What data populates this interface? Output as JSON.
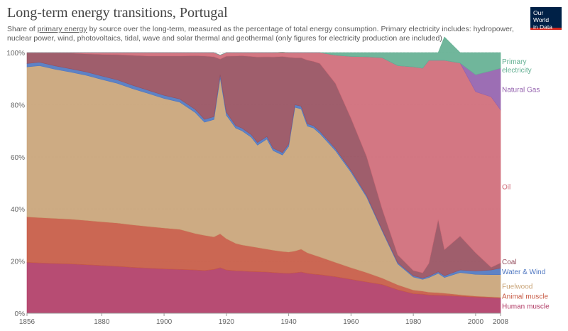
{
  "header": {
    "title": "Long-term energy transitions, Portugal",
    "subtitle_pre": "Share of ",
    "subtitle_link": "primary energy",
    "subtitle_post": " by source over the long-term, measured as the percentage of total energy consumption. Primary electricity includes: hydropower, nuclear power, wind, photovoltaics, tidal, wave and solar thermal and geothermal (only figures for electricity production are included).",
    "logo_line1": "Our World",
    "logo_line2": "in Data"
  },
  "chart_data": {
    "type": "area",
    "stacked": true,
    "title": "Long-term energy transitions, Portugal",
    "x_ticks": [
      1856,
      1880,
      1900,
      1920,
      1940,
      1960,
      1980,
      2000,
      2008
    ],
    "y_ticks": [
      0,
      20,
      40,
      60,
      80,
      100
    ],
    "y_tick_labels": [
      "0%",
      "20%",
      "40%",
      "60%",
      "80%",
      "100%"
    ],
    "xlim": [
      1856,
      2008
    ],
    "ylim": [
      0,
      100
    ],
    "grid": "horizontal dotted",
    "legend_placement": "right",
    "x": [
      1856,
      1860,
      1865,
      1870,
      1875,
      1880,
      1885,
      1890,
      1895,
      1900,
      1905,
      1910,
      1913,
      1916,
      1918,
      1920,
      1923,
      1925,
      1928,
      1930,
      1933,
      1935,
      1938,
      1940,
      1942,
      1944,
      1946,
      1948,
      1950,
      1955,
      1960,
      1965,
      1970,
      1975,
      1980,
      1983,
      1985,
      1988,
      1990,
      1995,
      2000,
      2005,
      2008
    ],
    "series": [
      {
        "name": "Human muscle",
        "color": "#b13d67",
        "values": [
          19.5,
          19.3,
          19.1,
          18.9,
          18.6,
          18.3,
          18.0,
          17.6,
          17.3,
          17.0,
          16.8,
          16.6,
          16.4,
          16.8,
          17.5,
          16.6,
          16.3,
          16.2,
          16.0,
          15.9,
          15.8,
          15.6,
          15.4,
          15.3,
          15.5,
          15.8,
          15.3,
          15.0,
          14.8,
          14.0,
          13.0,
          12.0,
          11.0,
          9.0,
          7.5,
          7.3,
          7.0,
          6.9,
          6.8,
          6.5,
          6.2,
          6.0,
          5.8
        ]
      },
      {
        "name": "Animal muscle",
        "color": "#c75a44",
        "values": [
          17.5,
          17.4,
          17.3,
          17.2,
          17.0,
          16.8,
          16.6,
          16.3,
          16.0,
          15.7,
          15.4,
          14.0,
          13.5,
          12.5,
          13.0,
          12.0,
          10.5,
          10.0,
          9.6,
          9.3,
          8.8,
          8.6,
          8.3,
          8.2,
          8.4,
          8.8,
          7.9,
          7.4,
          6.8,
          5.5,
          4.5,
          3.6,
          2.5,
          1.9,
          1.4,
          1.2,
          1.1,
          1.0,
          0.9,
          0.6,
          0.4,
          0.3,
          0.3
        ]
      },
      {
        "name": "Fuelwood",
        "color": "#c9a478",
        "values": [
          57.5,
          58.3,
          57.2,
          56.4,
          55.7,
          54.6,
          53.6,
          52.2,
          51.0,
          49.7,
          48.8,
          46.4,
          43.4,
          45.0,
          59.8,
          47.4,
          44.2,
          43.8,
          41.9,
          39.3,
          42.2,
          38.2,
          37.0,
          40.5,
          55.1,
          53.8,
          48.6,
          48.6,
          47.3,
          42.9,
          36.6,
          29.0,
          18.0,
          8.0,
          5.0,
          4.5,
          5.6,
          7.4,
          6.0,
          8.5,
          8.3,
          8.5,
          8.7
        ]
      },
      {
        "name": "Water & Wind",
        "color": "#4f77c1",
        "values": [
          1.3,
          1.3,
          1.3,
          1.3,
          1.3,
          1.3,
          1.3,
          1.3,
          1.2,
          1.2,
          1.2,
          1.2,
          1.1,
          1.1,
          1.2,
          1.1,
          1.0,
          1.0,
          1.0,
          1.0,
          1.0,
          0.9,
          0.9,
          0.9,
          1.0,
          1.0,
          0.9,
          0.9,
          0.9,
          0.8,
          0.7,
          0.6,
          0.5,
          0.5,
          0.5,
          0.5,
          0.5,
          0.6,
          0.7,
          1.0,
          1.3,
          1.8,
          2.5
        ]
      },
      {
        "name": "Coal",
        "color": "#975060",
        "values": [
          4.0,
          3.5,
          4.9,
          6.0,
          6.9,
          8.3,
          9.7,
          11.5,
          13.2,
          15.1,
          16.5,
          20.6,
          24.3,
          23.0,
          6.0,
          21.5,
          26.7,
          27.8,
          30.0,
          32.8,
          30.6,
          35.0,
          36.9,
          33.3,
          18.0,
          18.6,
          24.4,
          24.7,
          26.0,
          25.0,
          20.0,
          15.0,
          8.0,
          3.0,
          2.0,
          2.0,
          5.0,
          20.0,
          10.0,
          13.0,
          7.0,
          1.0,
          2.0
        ]
      },
      {
        "name": "Oil",
        "color": "#cf6b78",
        "values": [
          0.2,
          0.2,
          0.2,
          0.2,
          0.5,
          0.7,
          0.8,
          1.1,
          1.3,
          1.3,
          1.3,
          1.2,
          1.3,
          1.6,
          1.5,
          1.4,
          1.3,
          1.2,
          1.5,
          1.7,
          1.6,
          1.7,
          1.6,
          1.8,
          2.0,
          2.0,
          2.9,
          3.4,
          4.2,
          10.8,
          23.7,
          38.2,
          58.0,
          72.6,
          78.1,
          78.5,
          77.8,
          61.1,
          72.6,
          66.4,
          61.8,
          65.4,
          58.7
        ]
      },
      {
        "name": "Natural Gas",
        "color": "#9462ae",
        "values": [
          0,
          0,
          0,
          0,
          0,
          0,
          0,
          0,
          0,
          0,
          0,
          0,
          0,
          0,
          0,
          0,
          0,
          0,
          0,
          0,
          0,
          0,
          0,
          0,
          0,
          0,
          0,
          0,
          0,
          0,
          0,
          0,
          0,
          0,
          0,
          0,
          0,
          0,
          0,
          0,
          6.5,
          10.0,
          16.0
        ]
      },
      {
        "name": "Primary electricity",
        "color": "#64b093",
        "values": [
          0,
          0,
          0,
          0,
          0,
          0,
          0,
          0,
          0,
          0,
          0,
          0,
          0,
          0,
          0,
          0,
          0,
          0,
          0,
          0,
          0,
          0,
          0,
          0,
          0,
          0,
          0,
          0,
          0,
          1.0,
          1.5,
          1.6,
          2.0,
          5.0,
          5.5,
          6.0,
          3.0,
          3.0,
          9.0,
          4.0,
          8.5,
          7.0,
          6.0
        ]
      }
    ]
  }
}
